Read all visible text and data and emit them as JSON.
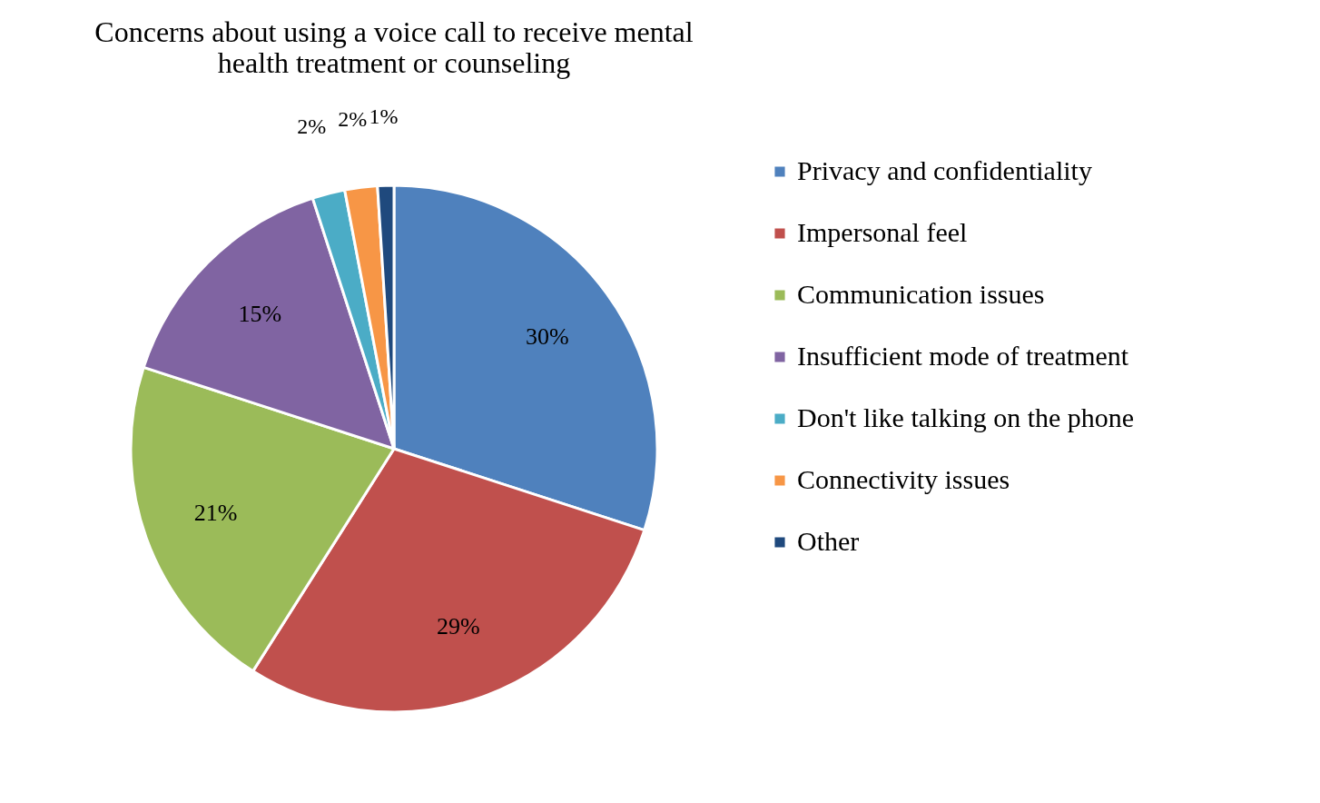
{
  "chart_data": {
    "type": "pie",
    "title": "Concerns about using a voice call to receive mental health treatment or counseling",
    "categories": [
      "Privacy and confidentiality",
      "Impersonal feel",
      "Communication issues",
      "Insufficient mode of treatment",
      "Don't like talking on the phone",
      "Connectivity issues",
      "Other"
    ],
    "values": [
      30,
      29,
      21,
      15,
      2,
      2,
      1
    ],
    "value_labels": [
      "30%",
      "29%",
      "21%",
      "15%",
      "2%",
      "2%",
      "1%"
    ],
    "colors": [
      "#4f81bd",
      "#c0504d",
      "#9bbb59",
      "#8064a2",
      "#4bacc6",
      "#f79646",
      "#1f497d"
    ],
    "legend": "right"
  }
}
